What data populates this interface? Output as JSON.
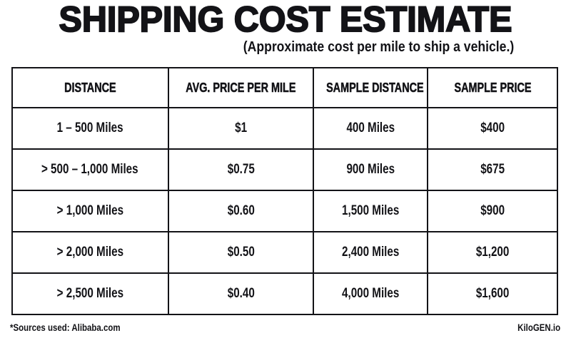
{
  "chart_data": {
    "type": "table",
    "title": "SHIPPING COST ESTIMATE",
    "subtitle": "(Approximate cost per mile to ship a vehicle.)",
    "columns": [
      "DISTANCE",
      "AVG. PRICE PER MILE",
      "SAMPLE DISTANCE",
      "SAMPLE PRICE"
    ],
    "rows": [
      [
        "1 – 500 Miles",
        "$1",
        "400 Miles",
        "$400"
      ],
      [
        "> 500 – 1,000 Miles",
        "$0.75",
        "900 Miles",
        "$675"
      ],
      [
        "> 1,000 Miles",
        "$0.60",
        "1,500 Miles",
        "$900"
      ],
      [
        "> 2,000 Miles",
        "$0.50",
        "2,400 Miles",
        "$1,200"
      ],
      [
        "> 2,500 Miles",
        "$0.40",
        "4,000 Miles",
        "$1,600"
      ]
    ],
    "avg_price_per_mile_usd": [
      1.0,
      0.75,
      0.6,
      0.5,
      0.4
    ],
    "sample_distance_miles": [
      400,
      900,
      1500,
      2400,
      4000
    ],
    "sample_price_usd": [
      400,
      675,
      900,
      1200,
      1600
    ]
  },
  "footer": {
    "source_note": "*Sources used: Alibaba.com",
    "brand": "KiloGEN.io"
  },
  "colors": {
    "background": "#ffffff",
    "text": "#131317",
    "border": "#131317"
  }
}
